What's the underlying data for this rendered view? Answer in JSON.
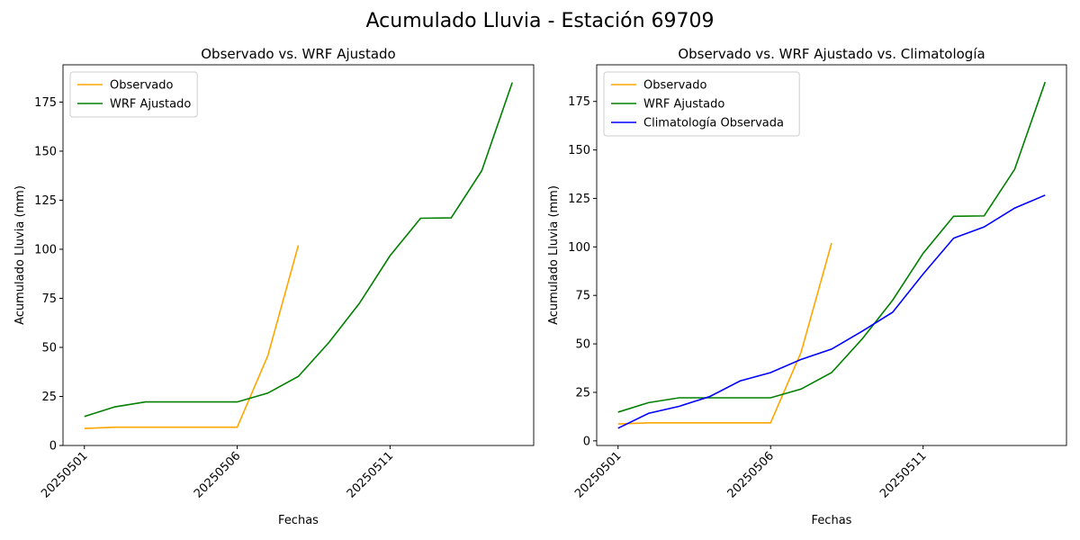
{
  "title": "Acumulado Lluvia - Estación 69709",
  "chart_data": [
    {
      "type": "line",
      "title": "Observado vs. WRF Ajustado",
      "xlabel": "Fechas",
      "ylabel": "Acumulado Lluvia (mm)",
      "categories": [
        "20250501",
        null,
        null,
        null,
        null,
        "20250506",
        null,
        null,
        null,
        null,
        "20250511",
        null,
        null,
        null,
        null
      ],
      "series": [
        {
          "name": "Observado",
          "color": "orange",
          "values": [
            8.7,
            9.3,
            9.3,
            9.3,
            9.3,
            9.3,
            45.7,
            102,
            null,
            null,
            null,
            null,
            null,
            null,
            null
          ]
        },
        {
          "name": "WRF Ajustado",
          "color": "green",
          "values": [
            14.8,
            19.7,
            22.2,
            22.2,
            22.2,
            22.2,
            26.7,
            35.2,
            52.5,
            72.5,
            96.7,
            115.8,
            116.0,
            140,
            185
          ]
        }
      ],
      "ylim": [
        0,
        194
      ],
      "yticks": [
        0,
        25,
        50,
        75,
        100,
        125,
        150,
        175
      ],
      "legend": "upper left"
    },
    {
      "type": "line",
      "title": "Observado vs. WRF Ajustado vs. Climatología",
      "xlabel": "Fechas",
      "ylabel": "Acumulado Lluvia (mm)",
      "categories": [
        "20250501",
        null,
        null,
        null,
        null,
        "20250506",
        null,
        null,
        null,
        null,
        "20250511",
        null,
        null,
        null,
        null
      ],
      "series": [
        {
          "name": "Observado",
          "color": "orange",
          "values": [
            8.7,
            9.3,
            9.3,
            9.3,
            9.3,
            9.3,
            45.7,
            102,
            null,
            null,
            null,
            null,
            null,
            null,
            null
          ]
        },
        {
          "name": "WRF Ajustado",
          "color": "green",
          "values": [
            14.8,
            19.7,
            22.2,
            22.2,
            22.2,
            22.2,
            26.7,
            35.2,
            52.5,
            72.5,
            96.7,
            115.8,
            116.0,
            140,
            185
          ]
        },
        {
          "name": "Climatología Observada",
          "color": "blue",
          "values": [
            6.5,
            14.2,
            17.8,
            22.8,
            30.9,
            35.2,
            42,
            47.3,
            56.5,
            66.3,
            86,
            104.5,
            110.3,
            120,
            126.7
          ]
        }
      ],
      "ylim": [
        -2.4,
        193.9
      ],
      "yticks": [
        0,
        25,
        50,
        75,
        100,
        125,
        150,
        175
      ],
      "legend": "upper left"
    }
  ]
}
